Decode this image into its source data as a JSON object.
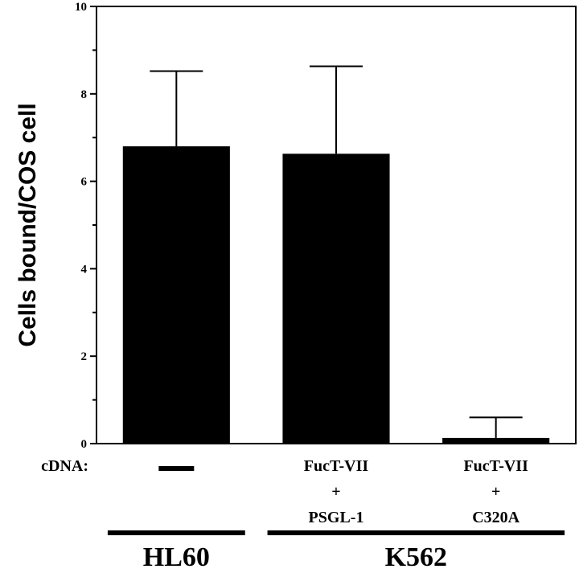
{
  "chart_data": {
    "type": "bar",
    "title": "",
    "xlabel": "",
    "ylabel": "Cells bound/COS cell",
    "ylim": [
      0,
      10
    ],
    "yticks": [
      0,
      2,
      4,
      6,
      8,
      10
    ],
    "grid": false,
    "row_label": "cDNA:",
    "categories": [
      {
        "lines": [
          "—"
        ],
        "dash": true
      },
      {
        "lines": [
          "FucT-VII",
          "+",
          "PSGL-1"
        ]
      },
      {
        "lines": [
          "FucT-VII",
          "+",
          "C320A"
        ]
      }
    ],
    "values": [
      6.8,
      6.63,
      0.13
    ],
    "errors": [
      1.72,
      2.0,
      0.47
    ],
    "groups": [
      {
        "label": "HL60",
        "categories": [
          0
        ]
      },
      {
        "label": "K562",
        "categories": [
          1,
          2
        ]
      }
    ],
    "colors": {
      "bar": "#000000",
      "axis": "#000000"
    }
  }
}
